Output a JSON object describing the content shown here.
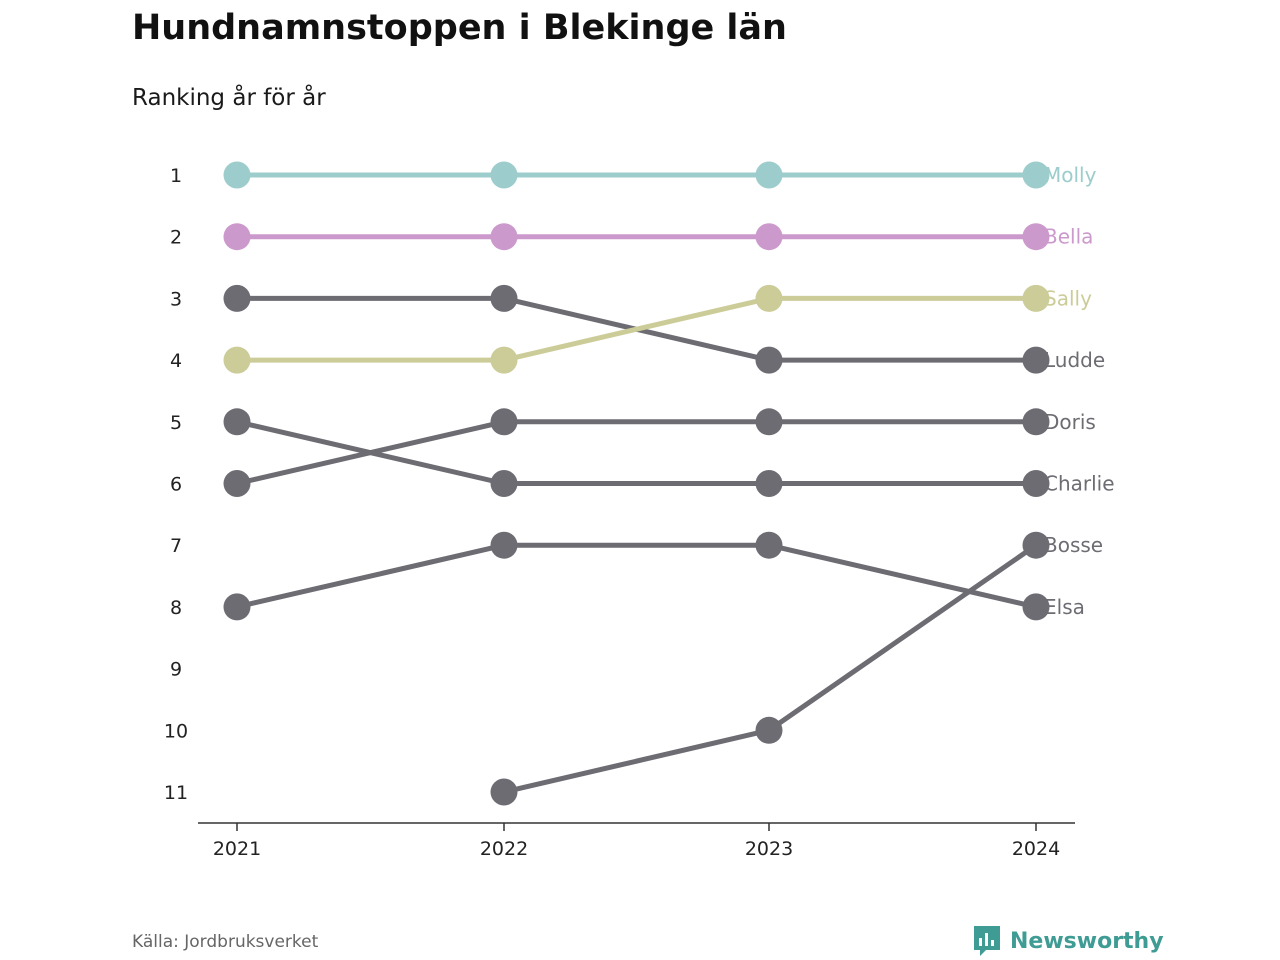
{
  "header": {
    "title": "Hundnamnstoppen i Blekinge län",
    "subtitle": "Ranking år för år"
  },
  "footer": {
    "source": "Källa: Jordbruksverket",
    "brand": "Newsworthy",
    "brand_icon": "bar-chart-logo-icon",
    "brand_color": "#3f9c94"
  },
  "chart_data": {
    "type": "line",
    "title": "Hundnamnstoppen i Blekinge län",
    "subtitle": "Ranking år för år",
    "x": [
      "2021",
      "2022",
      "2023",
      "2024"
    ],
    "y_ticks": [
      "1",
      "2",
      "3",
      "4",
      "5",
      "6",
      "7",
      "8",
      "9",
      "10",
      "11"
    ],
    "ylim": [
      1,
      11
    ],
    "y_reversed": true,
    "grid": false,
    "legend": "labels at line ends (right)",
    "series": [
      {
        "name": "Molly",
        "values": [
          1,
          1,
          1,
          1
        ],
        "color": "#9ccccc"
      },
      {
        "name": "Bella",
        "values": [
          2,
          2,
          2,
          2
        ],
        "color": "#cc99cc"
      },
      {
        "name": "Sally",
        "values": [
          4,
          4,
          3,
          3
        ],
        "color": "#cccc99"
      },
      {
        "name": "Ludde",
        "values": [
          3,
          3,
          4,
          4
        ],
        "color": "#6d6c73"
      },
      {
        "name": "Doris",
        "values": [
          6,
          5,
          5,
          5
        ],
        "color": "#6d6c73"
      },
      {
        "name": "Charlie",
        "values": [
          5,
          6,
          6,
          6
        ],
        "color": "#6d6c73"
      },
      {
        "name": "Bosse",
        "values": [
          null,
          11,
          10,
          7
        ],
        "color": "#6d6c73"
      },
      {
        "name": "Elsa",
        "values": [
          8,
          7,
          7,
          8
        ],
        "color": "#6d6c73"
      }
    ]
  }
}
